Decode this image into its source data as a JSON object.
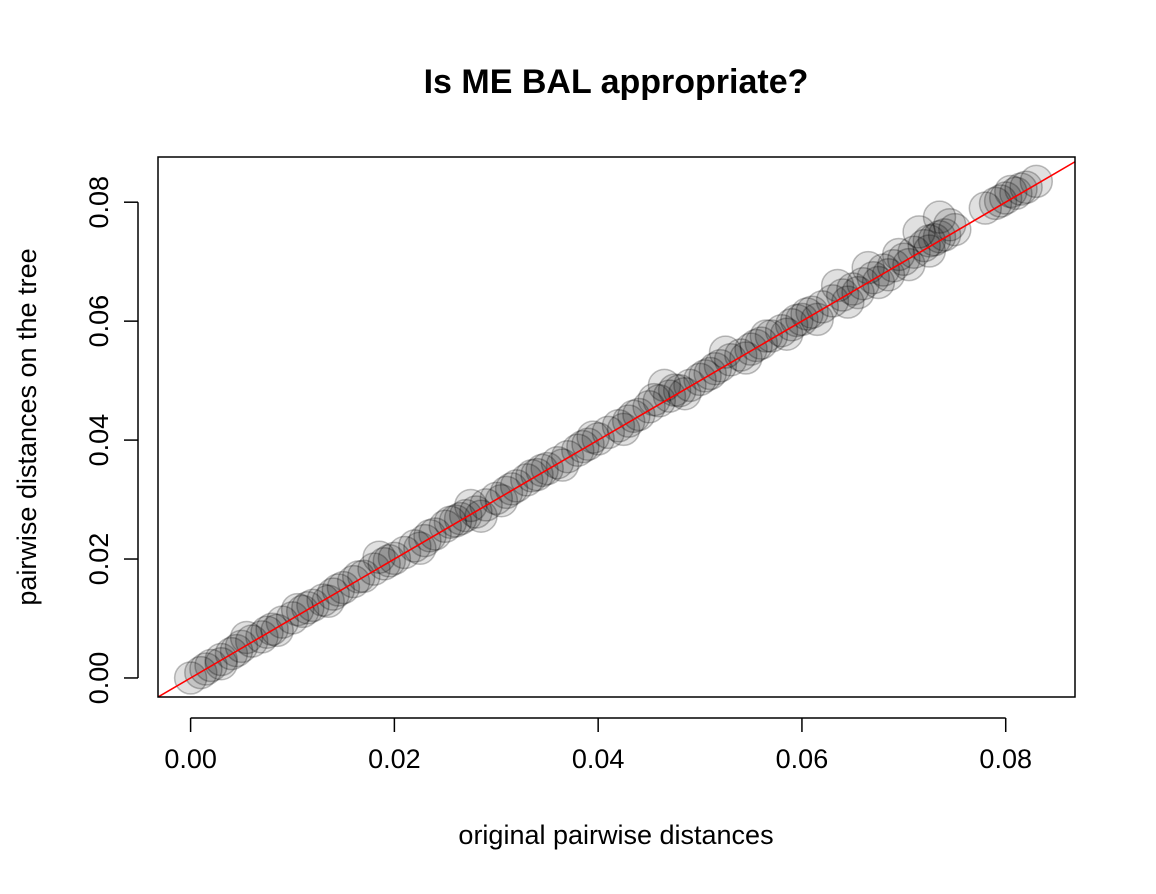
{
  "chart_data": {
    "type": "scatter",
    "title": "Is ME BAL appropriate?",
    "xlabel": "original pairwise distances",
    "ylabel": "pairwise distances on the tree",
    "xlim": [
      -0.0032,
      0.0868
    ],
    "ylim": [
      -0.0032,
      0.0876
    ],
    "xticks": [
      0.0,
      0.02,
      0.04,
      0.06,
      0.08
    ],
    "yticks": [
      0.0,
      0.02,
      0.04,
      0.06,
      0.08
    ],
    "xtick_labels": [
      "0.00",
      "0.02",
      "0.04",
      "0.06",
      "0.08"
    ],
    "ytick_labels": [
      "0.00",
      "0.02",
      "0.04",
      "0.06",
      "0.08"
    ],
    "point_color": "#000000",
    "point_alpha": 0.12,
    "reference_line": {
      "intercept": 0,
      "slope": 1,
      "color": "#ff0000"
    },
    "grid": false,
    "legend": "none",
    "series": [
      {
        "points": [
          [
            0.0,
            0.0
          ],
          [
            0.001,
            0.0009
          ],
          [
            0.002,
            0.0021
          ],
          [
            0.003,
            0.0031
          ],
          [
            0.004,
            0.0041
          ],
          [
            0.005,
            0.0053
          ],
          [
            0.006,
            0.0062
          ],
          [
            0.007,
            0.0069
          ],
          [
            0.008,
            0.0082
          ],
          [
            0.009,
            0.0094
          ],
          [
            0.01,
            0.0101
          ],
          [
            0.011,
            0.0112
          ],
          [
            0.012,
            0.0122
          ],
          [
            0.013,
            0.0131
          ],
          [
            0.014,
            0.0141
          ],
          [
            0.015,
            0.0152
          ],
          [
            0.016,
            0.0162
          ],
          [
            0.017,
            0.0171
          ],
          [
            0.018,
            0.0183
          ],
          [
            0.019,
            0.0192
          ],
          [
            0.02,
            0.0201
          ],
          [
            0.021,
            0.0211
          ],
          [
            0.022,
            0.0222
          ],
          [
            0.023,
            0.0231
          ],
          [
            0.024,
            0.0242
          ],
          [
            0.025,
            0.0255
          ],
          [
            0.026,
            0.0264
          ],
          [
            0.027,
            0.0273
          ],
          [
            0.028,
            0.0279
          ],
          [
            0.029,
            0.0291
          ],
          [
            0.03,
            0.0302
          ],
          [
            0.031,
            0.0312
          ],
          [
            0.032,
            0.0323
          ],
          [
            0.033,
            0.0333
          ],
          [
            0.034,
            0.0342
          ],
          [
            0.035,
            0.0352
          ],
          [
            0.036,
            0.0362
          ],
          [
            0.037,
            0.0372
          ],
          [
            0.038,
            0.0383
          ],
          [
            0.039,
            0.0393
          ],
          [
            0.04,
            0.0402
          ],
          [
            0.041,
            0.0413
          ],
          [
            0.042,
            0.0424
          ],
          [
            0.043,
            0.0432
          ],
          [
            0.044,
            0.0443
          ],
          [
            0.045,
            0.0456
          ],
          [
            0.046,
            0.0466
          ],
          [
            0.047,
            0.0474
          ],
          [
            0.048,
            0.0483
          ],
          [
            0.049,
            0.0492
          ],
          [
            0.05,
            0.0502
          ],
          [
            0.051,
            0.0512
          ],
          [
            0.052,
            0.0525
          ],
          [
            0.053,
            0.0535
          ],
          [
            0.054,
            0.0543
          ],
          [
            0.055,
            0.0553
          ],
          [
            0.056,
            0.0563
          ],
          [
            0.057,
            0.0575
          ],
          [
            0.058,
            0.0584
          ],
          [
            0.059,
            0.0594
          ],
          [
            0.06,
            0.0603
          ],
          [
            0.061,
            0.0615
          ],
          [
            0.062,
            0.0624
          ],
          [
            0.063,
            0.0634
          ],
          [
            0.064,
            0.0644
          ],
          [
            0.065,
            0.0654
          ],
          [
            0.066,
            0.0663
          ],
          [
            0.067,
            0.0673
          ],
          [
            0.068,
            0.0686
          ],
          [
            0.069,
            0.0693
          ],
          [
            0.07,
            0.0704
          ],
          [
            0.071,
            0.0716
          ],
          [
            0.072,
            0.0727
          ],
          [
            0.073,
            0.0737
          ],
          [
            0.074,
            0.0745
          ],
          [
            0.075,
            0.0754
          ],
          [
            0.078,
            0.079
          ],
          [
            0.079,
            0.0798
          ],
          [
            0.08,
            0.0807
          ],
          [
            0.081,
            0.0815
          ],
          [
            0.082,
            0.0825
          ],
          [
            0.083,
            0.0835
          ],
          [
            0.003,
            0.0024
          ],
          [
            0.0055,
            0.0068
          ],
          [
            0.0085,
            0.008
          ],
          [
            0.0105,
            0.0115
          ],
          [
            0.0135,
            0.0129
          ],
          [
            0.0165,
            0.017
          ],
          [
            0.0185,
            0.0203
          ],
          [
            0.0225,
            0.0218
          ],
          [
            0.0255,
            0.0262
          ],
          [
            0.0275,
            0.029
          ],
          [
            0.0285,
            0.0272
          ],
          [
            0.0305,
            0.0298
          ],
          [
            0.0335,
            0.034
          ],
          [
            0.0365,
            0.0358
          ],
          [
            0.0395,
            0.0405
          ],
          [
            0.0425,
            0.0418
          ],
          [
            0.0455,
            0.0468
          ],
          [
            0.0465,
            0.0492
          ],
          [
            0.0485,
            0.0478
          ],
          [
            0.0515,
            0.052
          ],
          [
            0.0525,
            0.0548
          ],
          [
            0.0545,
            0.0538
          ],
          [
            0.0565,
            0.0575
          ],
          [
            0.0585,
            0.0578
          ],
          [
            0.0605,
            0.0612
          ],
          [
            0.0615,
            0.0603
          ],
          [
            0.0635,
            0.066
          ],
          [
            0.0655,
            0.0648
          ],
          [
            0.0665,
            0.069
          ],
          [
            0.0675,
            0.0665
          ],
          [
            0.0695,
            0.0712
          ],
          [
            0.0705,
            0.0695
          ],
          [
            0.0715,
            0.075
          ],
          [
            0.0725,
            0.0718
          ],
          [
            0.0735,
            0.0775
          ],
          [
            0.0745,
            0.0762
          ],
          [
            0.0735,
            0.0742
          ],
          [
            0.0725,
            0.0735
          ],
          [
            0.0685,
            0.0678
          ],
          [
            0.0645,
            0.0632
          ],
          [
            0.0595,
            0.0601
          ],
          [
            0.0555,
            0.0559
          ],
          [
            0.0505,
            0.0508
          ],
          [
            0.0475,
            0.0484
          ],
          [
            0.0435,
            0.044
          ],
          [
            0.0385,
            0.0389
          ],
          [
            0.0345,
            0.0349
          ],
          [
            0.0315,
            0.0318
          ],
          [
            0.0265,
            0.0268
          ],
          [
            0.0235,
            0.0239
          ],
          [
            0.0195,
            0.0197
          ],
          [
            0.0145,
            0.0148
          ],
          [
            0.0115,
            0.0118
          ],
          [
            0.0075,
            0.0077
          ],
          [
            0.0045,
            0.0046
          ],
          [
            0.0015,
            0.0015
          ],
          [
            0.0805,
            0.0818
          ],
          [
            0.0815,
            0.0822
          ],
          [
            0.0795,
            0.0802
          ]
        ]
      }
    ]
  }
}
